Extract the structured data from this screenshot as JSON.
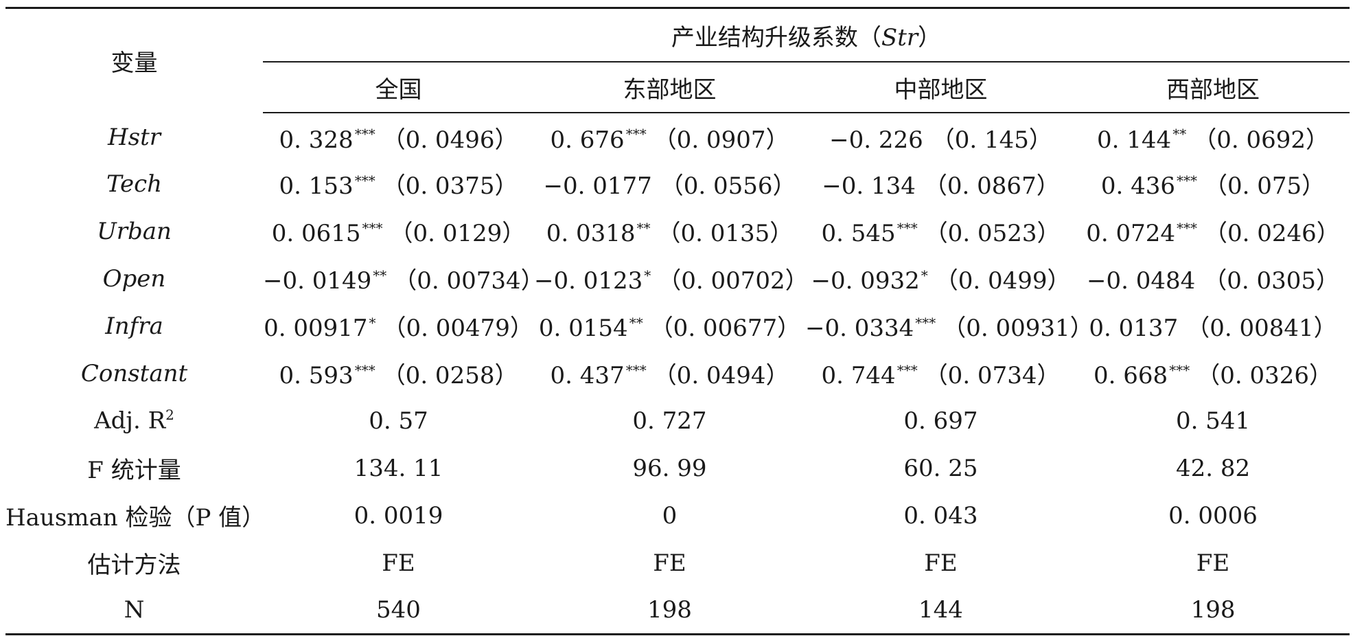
{
  "header": {
    "variable_label": "变量",
    "group_title": "产业结构升级系数（Str）",
    "group_title_prefix": "产业结构升级系数（",
    "group_title_italic": "Str",
    "group_title_suffix": "）",
    "columns": [
      "全国",
      "东部地区",
      "中部地区",
      "西部地区"
    ]
  },
  "rows": [
    {
      "label": "Hstr",
      "italic": true,
      "cells": [
        {
          "coef": "0. 328",
          "stars": "***",
          "se": "（0. 0496）"
        },
        {
          "coef": "0. 676",
          "stars": "***",
          "se": "（0. 0907）"
        },
        {
          "coef": "−0. 226",
          "stars": "",
          "se": "（0. 145）"
        },
        {
          "coef": "0. 144",
          "stars": "**",
          "se": "（0. 0692）"
        }
      ]
    },
    {
      "label": "Tech",
      "italic": true,
      "cells": [
        {
          "coef": "0. 153",
          "stars": "***",
          "se": "（0. 0375）"
        },
        {
          "coef": "−0. 0177",
          "stars": "",
          "se": "（0. 0556）"
        },
        {
          "coef": "−0. 134",
          "stars": "",
          "se": "（0. 0867）"
        },
        {
          "coef": "0. 436",
          "stars": "***",
          "se": "（0. 075）"
        }
      ]
    },
    {
      "label": "Urban",
      "italic": true,
      "cells": [
        {
          "coef": "0. 0615",
          "stars": "***",
          "se": "（0. 0129）"
        },
        {
          "coef": "0. 0318",
          "stars": "**",
          "se": "（0. 0135）"
        },
        {
          "coef": "0. 545",
          "stars": "***",
          "se": "（0. 0523）"
        },
        {
          "coef": "0. 0724",
          "stars": "***",
          "se": "（0. 0246）"
        }
      ]
    },
    {
      "label": "Open",
      "italic": true,
      "cells": [
        {
          "coef": "−0. 0149",
          "stars": "**",
          "se": "（0. 00734）"
        },
        {
          "coef": "−0. 0123",
          "stars": "*",
          "se": "（0. 00702）"
        },
        {
          "coef": "−0. 0932",
          "stars": "*",
          "se": "（0. 0499）"
        },
        {
          "coef": "−0. 0484",
          "stars": "",
          "se": "（0. 0305）"
        }
      ]
    },
    {
      "label": "Infra",
      "italic": true,
      "cells": [
        {
          "coef": "0. 00917",
          "stars": "*",
          "se": "（0. 00479）"
        },
        {
          "coef": "0. 0154",
          "stars": "**",
          "se": "（0. 00677）"
        },
        {
          "coef": "−0. 0334",
          "stars": "***",
          "se": "（0. 00931）"
        },
        {
          "coef": "0. 0137",
          "stars": "",
          "se": "（0. 00841）"
        }
      ]
    },
    {
      "label": "Constant",
      "italic": true,
      "cells": [
        {
          "coef": "0. 593",
          "stars": "***",
          "se": "（0. 0258）"
        },
        {
          "coef": "0. 437",
          "stars": "***",
          "se": "（0. 0494）"
        },
        {
          "coef": "0. 744",
          "stars": "***",
          "se": "（0. 0734）"
        },
        {
          "coef": "0. 668",
          "stars": "***",
          "se": "（0. 0326）"
        }
      ]
    }
  ],
  "stats_rows": [
    {
      "label": "Adj. R",
      "label_sup": "2",
      "values": [
        "0. 57",
        "0. 727",
        "0. 697",
        "0. 541"
      ]
    },
    {
      "label": "F 统计量",
      "label_sup": "",
      "values": [
        "134. 11",
        "96. 99",
        "60. 25",
        "42. 82"
      ]
    },
    {
      "label": "Hausman 检验（P 值）",
      "label_sup": "",
      "values": [
        "0. 0019",
        "0",
        "0. 043",
        "0. 0006"
      ]
    },
    {
      "label": "估计方法",
      "label_sup": "",
      "values": [
        "FE",
        "FE",
        "FE",
        "FE"
      ]
    },
    {
      "label": "N",
      "label_sup": "",
      "values": [
        "540",
        "198",
        "144",
        "198"
      ]
    }
  ]
}
